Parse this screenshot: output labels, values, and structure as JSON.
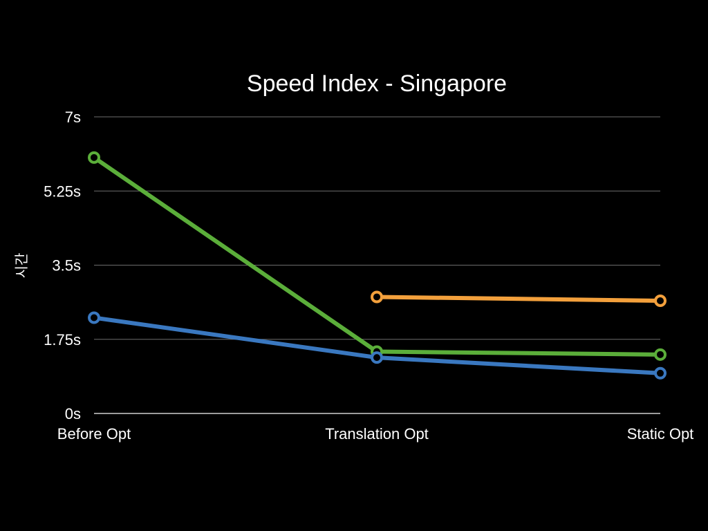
{
  "chart_data": {
    "type": "line",
    "title": "Speed Index - Singapore",
    "ylabel": "시간",
    "xlabel": "",
    "categories": [
      "Before Opt",
      "Translation Opt",
      "Static Opt"
    ],
    "y_ticks": [
      "0s",
      "1.75s",
      "3.5s",
      "5.25s",
      "7s"
    ],
    "ylim": [
      0,
      7
    ],
    "grid": true,
    "legend": "none",
    "series": [
      {
        "color": "#5BAE3A",
        "values": [
          6.04,
          1.46,
          1.39
        ]
      },
      {
        "color": "#3A78C0",
        "values": [
          2.26,
          1.32,
          0.95
        ]
      },
      {
        "color": "#F3A03C",
        "values": [
          null,
          2.75,
          2.66
        ]
      }
    ]
  }
}
